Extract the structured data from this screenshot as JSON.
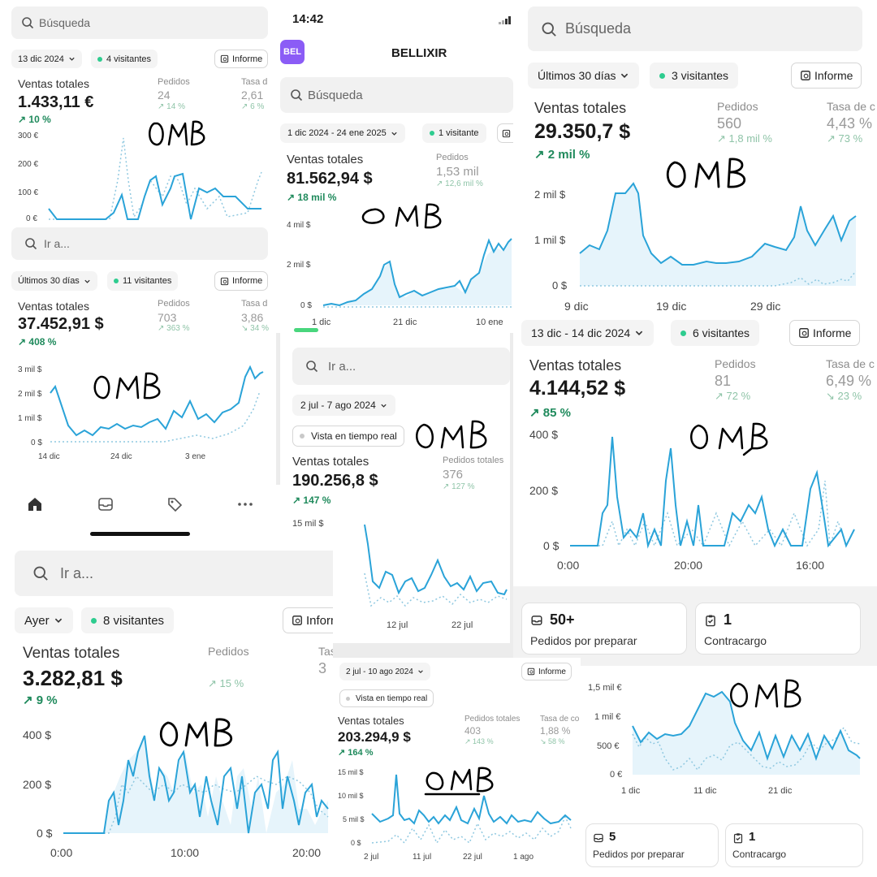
{
  "common": {
    "total_sales_label": "Ventas totales",
    "orders_label": "Pedidos",
    "rate_label": "Tasa de c",
    "rate_label_short": "Tasa d",
    "rate_label_mid": "Tasa de co",
    "report": "Informe",
    "total_orders_label": "Pedidos totales",
    "realtime": "Vista en tiempo real",
    "signature": "OMB"
  },
  "p1": {
    "search": "Búsqueda",
    "date": "13 dic 2024",
    "visitors": "4 visitantes",
    "sales": "1.433,11 €",
    "sales_change": "10 %",
    "orders": "24",
    "orders_change": "14 %",
    "rate": "2,61",
    "rate_change": "6 %",
    "y_ticks": [
      "300 €",
      "200 €",
      "100 €",
      "0 €"
    ]
  },
  "p2": {
    "search": "Ir a...",
    "date": "Últimos 30 días",
    "visitors": "11 visitantes",
    "sales": "37.452,91 $",
    "sales_change": "408 %",
    "orders": "703",
    "orders_change": "363 %",
    "rate": "3,86",
    "rate_change": "34 %",
    "y_ticks": [
      "3 mil $",
      "2 mil $",
      "1 mil $",
      "0 $"
    ],
    "x_ticks": [
      "14 dic",
      "24 dic",
      "3 ene"
    ]
  },
  "p3": {
    "time": "14:42",
    "avatar": "BEL",
    "store": "BELLIXIR",
    "search": "Búsqueda",
    "date": "1 dic 2024 - 24 ene 2025",
    "visitors": "1 visitante",
    "sales": "81.562,94 $",
    "sales_change": "18 mil %",
    "orders": "1,53 mil",
    "orders_change": "12,6 mil %",
    "y_ticks": [
      "4 mil $",
      "2 mil $",
      "0 $"
    ],
    "x_ticks": [
      "1 dic",
      "21 dic",
      "10 ene"
    ]
  },
  "p4": {
    "search": "Búsqueda",
    "date": "Últimos 30 días",
    "visitors": "3 visitantes",
    "sales": "29.350,7 $",
    "sales_change": "2 mil %",
    "orders": "560",
    "orders_change": "1,8 mil %",
    "rate": "4,43 %",
    "rate_change": "73 %",
    "y_ticks": [
      "2 mil $",
      "1 mil $",
      "0 $"
    ],
    "x_ticks": [
      "9 dic",
      "19 dic",
      "29 dic"
    ]
  },
  "p5": {
    "search": "Ir a...",
    "date": "2 jul - 7 ago 2024",
    "sales": "190.256,8 $",
    "sales_change": "147 %",
    "orders": "376",
    "orders_change": "127 %",
    "y_ticks": [
      "15 mil $"
    ],
    "x_ticks": [
      "12 jul",
      "22 jul"
    ]
  },
  "p6": {
    "date": "13 dic - 14 dic 2024",
    "visitors": "6 visitantes",
    "sales": "4.144,52 $",
    "sales_change": "85 %",
    "orders": "81",
    "orders_change": "72 %",
    "rate": "6,49 %",
    "rate_change": "23 %",
    "y_ticks": [
      "400 $",
      "200 $",
      "0 $"
    ],
    "x_ticks": [
      "0:00",
      "20:00",
      "16:00"
    ]
  },
  "p7": {
    "search": "Ir a...",
    "date": "Ayer",
    "visitors": "8 visitantes",
    "sales": "3.282,81 $",
    "sales_change": "9 %",
    "orders_change": "15 %",
    "rate": "3",
    "y_ticks": [
      "400 $",
      "200 $",
      "0 $"
    ],
    "x_ticks": [
      "0:00",
      "10:00",
      "20:00"
    ]
  },
  "p8": {
    "date": "2 jul - 10 ago 2024",
    "sales": "203.294,9 $",
    "sales_change": "164 %",
    "orders": "403",
    "orders_change": "143 %",
    "rate": "1,88 %",
    "rate_change": "58 %",
    "y_ticks": [
      "15 mil $",
      "10 mil $",
      "5 mil $",
      "0 $"
    ],
    "x_ticks": [
      "2 jul",
      "11 jul",
      "22 jul",
      "1 ago"
    ]
  },
  "p9": {
    "prep_count": "50+",
    "prep_label": "Pedidos por preparar",
    "charge_count": "1",
    "charge_label": "Contracargo"
  },
  "p10": {
    "y_ticks": [
      "1,5 mil €",
      "1 mil €",
      "500 €",
      "0 €"
    ],
    "x_ticks": [
      "1 dic",
      "11 dic",
      "21 dic"
    ],
    "prep_count": "5",
    "prep_label": "Pedidos por preparar",
    "charge_count": "1",
    "charge_label": "Contracargo"
  },
  "colors": {
    "line": "#2aa3d8",
    "compare": "#8fc8e0",
    "accent_green": "#1f8a5c",
    "avatar": "#8b5cf6"
  }
}
